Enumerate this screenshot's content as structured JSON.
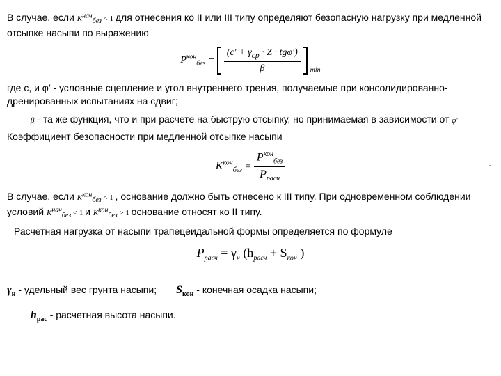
{
  "p1_a": "В случае, если ",
  "p1_k": "K",
  "p1_ksup": "нач",
  "p1_ksub": "без",
  "p1_lt1": " < 1 ",
  "p1_b": "для отнесения ко II или III типу определяют безопасную нагрузку при медленной отсыпке насыпи по выражению",
  "f1_P": "P",
  "f1_Psup": "кон",
  "f1_Psub": "без",
  "f1_eq": " = ",
  "f1_num": "(c′ + γ<sub>cp</sub> · Z · tgφ′)",
  "f1_den": "β",
  "f1_min": "min",
  "p2": "где c, и φ′ - условные сцепление и угол внутреннего трения, получаемые при консолидированно-дренированных испытаниях на сдвиг;",
  "p3_a": "β",
  "p3_b": " - та же функция, что и при расчете на быструю отсыпку, но принимаемая в зависимости от ",
  "p3_c": "φ′",
  "p4": "Коэффициент безопасности при медленной отсыпке насыпи",
  "f2_K": "K",
  "f2_Ksup": "кон",
  "f2_Ksub": "без",
  "f2_eq": " = ",
  "f2_Pnum": "P",
  "f2_Pnum_sup": "кон",
  "f2_Pnum_sub": "без",
  "f2_Pden": "P",
  "f2_Pden_sub": "расч",
  "p5_a": "В случае, если   ",
  "p5_k1": "K",
  "p5_k1sup": "кон",
  "p5_k1sub": "без",
  "p5_lt1": " < 1 ",
  "p5_b": " , основание должно быть отнесено к III типу. При одновременном соблюдении условий  ",
  "p5_k2": "K",
  "p5_k2sup": "нач",
  "p5_k2sub": "без",
  "p5_lt2": " < 1 ",
  "p5_c": "   и  ",
  "p5_k3": "K",
  "p5_k3sup": "кон",
  "p5_k3sub": "без",
  "p5_gt1": " > 1 ",
  "p5_d": "   основание относят ко II типу.",
  "p6": "Расчетная нагрузка от насыпи трапецеидальной формы определяется по формуле",
  "f3_P": "P",
  "f3_Psub": "расч",
  "f3_eq": " = γ",
  "f3_gsub": "н",
  "f3_paren": " (h",
  "f3_hsub": "расч",
  "f3_plus": " + S",
  "f3_ssub": "кон",
  "f3_close": ")",
  "sym1_v": "γ",
  "sym1_vsub": "н",
  "sym1_t": " - удельный вес грунта насыпи;",
  "sym2_v": "S",
  "sym2_vsub": "кон",
  "sym2_t": " - конечная осадка насыпи;",
  "sym3_v": "h",
  "sym3_vsub": "рас",
  "sym3_t": " - расчетная высота насыпи."
}
